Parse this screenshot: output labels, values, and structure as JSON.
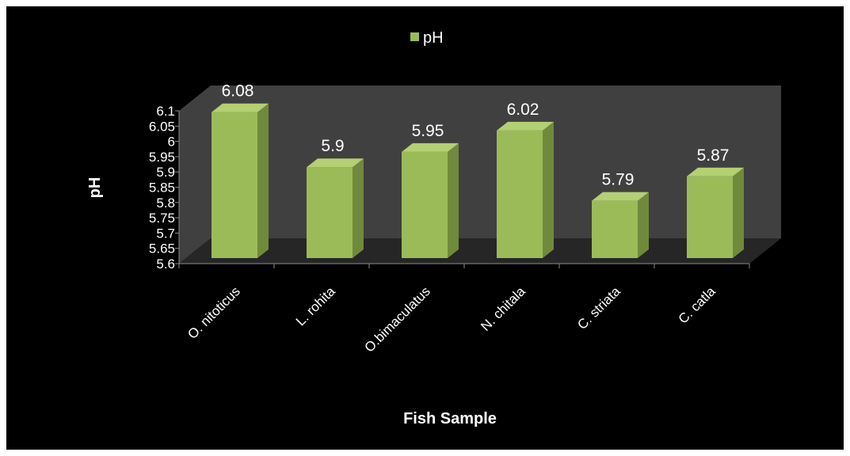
{
  "chart_data": {
    "type": "bar",
    "style": "3d-column",
    "categories": [
      "O. nitoticus",
      "L. rohita",
      "O.bimaculatus",
      "N. chitala",
      "C. striata",
      "C. catla"
    ],
    "series": [
      {
        "name": "pH",
        "values": [
          6.08,
          5.9,
          5.95,
          6.02,
          5.79,
          5.87
        ]
      }
    ],
    "data_labels": [
      "6.08",
      "5.9",
      "5.95",
      "6.02",
      "5.79",
      "5.87"
    ],
    "xlabel": "Fish Sample",
    "ylabel": "pH",
    "ylim": [
      5.6,
      6.1
    ],
    "yticks": [
      "5.6",
      "5.65",
      "5.7",
      "5.75",
      "5.8",
      "5.85",
      "5.9",
      "5.95",
      "6",
      "6.05",
      "6.1"
    ],
    "legend": "top-center",
    "grid": false,
    "colors": {
      "background": "#000000",
      "bar_front": "#9bbb59",
      "bar_side": "#6f8a3c",
      "bar_top": "#b4cf74",
      "wall": "#404040",
      "floor": "#262626",
      "text": "#ffffff"
    }
  }
}
